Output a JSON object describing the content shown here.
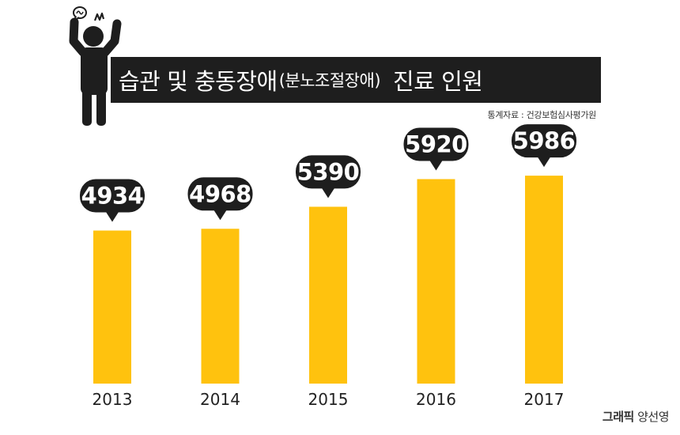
{
  "header": {
    "title_main": "습관 및 충동장애",
    "title_paren": "(분노조절장애)",
    "title_tail": "진료 인원",
    "source": "통계자료 : 건강보험심사평가원"
  },
  "credit": {
    "label": "그래픽",
    "author": "양선영"
  },
  "colors": {
    "bar": "#ffc20e",
    "bubble": "#1e1e1e",
    "bubble_text": "#ffffff",
    "banner": "#1e1e1e"
  },
  "icons": {
    "person": "angry-person-icon"
  },
  "chart_data": {
    "type": "bar",
    "categories": [
      "2013",
      "2014",
      "2015",
      "2016",
      "2017"
    ],
    "values": [
      4934,
      4968,
      5390,
      5920,
      5986
    ],
    "title": "습관 및 충동장애(분노조절장애) 진료 인원",
    "xlabel": "",
    "ylabel": "",
    "ylim": [
      2000,
      6200
    ],
    "grid": false,
    "legend": "none",
    "data_labels": true
  }
}
